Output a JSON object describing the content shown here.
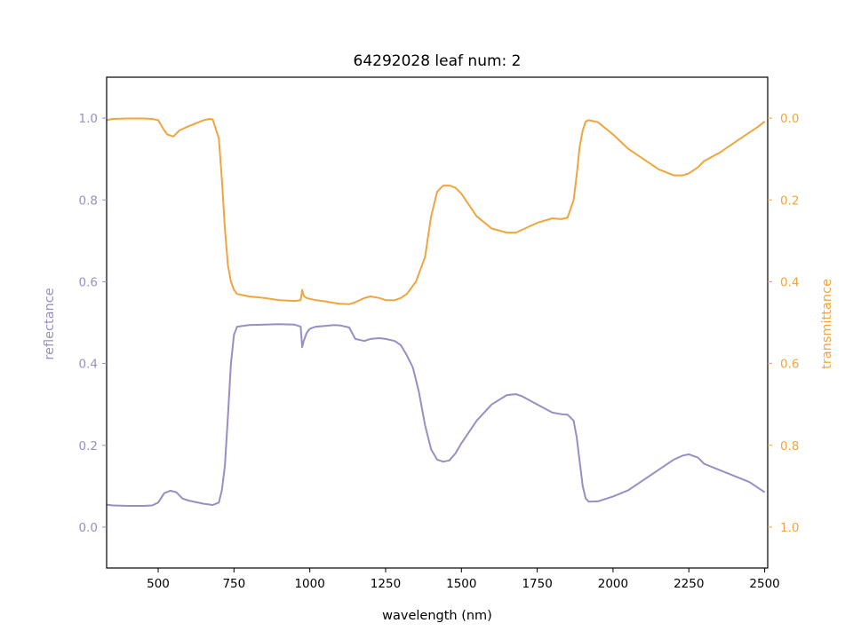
{
  "chart_data": {
    "type": "line",
    "title": "64292028 leaf num: 2",
    "xlabel": "wavelength (nm)",
    "ylabel": "reflectance",
    "y2label": "transmittance",
    "xlim": [
      330,
      2510
    ],
    "ylim": [
      -0.1,
      1.1
    ],
    "y2lim": [
      1.1,
      -0.1
    ],
    "y2_inverted": true,
    "x_ticks": [
      500,
      750,
      1000,
      1250,
      1500,
      1750,
      2000,
      2250,
      2500
    ],
    "y_ticks": [
      0.0,
      0.2,
      0.4,
      0.6,
      0.8,
      1.0
    ],
    "y2_ticks": [
      0.0,
      0.2,
      0.4,
      0.6,
      0.8,
      1.0
    ],
    "grid": false,
    "colors": {
      "reflectance": "#9490c4",
      "transmittance": "#f0a53e"
    },
    "series": [
      {
        "axis": "left",
        "x": [
          330,
          350,
          400,
          450,
          480,
          500,
          520,
          540,
          560,
          580,
          600,
          650,
          680,
          700,
          710,
          720,
          730,
          740,
          750,
          760,
          800,
          850,
          900,
          950,
          970,
          975,
          980,
          990,
          1000,
          1020,
          1050,
          1080,
          1100,
          1130,
          1150,
          1180,
          1200,
          1230,
          1250,
          1280,
          1300,
          1320,
          1340,
          1360,
          1380,
          1400,
          1420,
          1440,
          1460,
          1480,
          1500,
          1550,
          1600,
          1650,
          1680,
          1700,
          1750,
          1800,
          1830,
          1850,
          1870,
          1880,
          1890,
          1900,
          1910,
          1920,
          1950,
          2000,
          2050,
          2100,
          2150,
          2200,
          2230,
          2250,
          2280,
          2300,
          2350,
          2400,
          2450,
          2480,
          2500
        ],
        "y": [
          0.055,
          0.053,
          0.052,
          0.052,
          0.053,
          0.06,
          0.083,
          0.089,
          0.085,
          0.07,
          0.065,
          0.057,
          0.054,
          0.06,
          0.09,
          0.15,
          0.27,
          0.4,
          0.47,
          0.49,
          0.494,
          0.495,
          0.496,
          0.495,
          0.49,
          0.44,
          0.455,
          0.475,
          0.485,
          0.49,
          0.492,
          0.494,
          0.493,
          0.488,
          0.46,
          0.455,
          0.46,
          0.462,
          0.46,
          0.455,
          0.445,
          0.42,
          0.39,
          0.33,
          0.25,
          0.19,
          0.165,
          0.16,
          0.163,
          0.18,
          0.205,
          0.26,
          0.3,
          0.323,
          0.325,
          0.32,
          0.3,
          0.28,
          0.276,
          0.275,
          0.26,
          0.22,
          0.16,
          0.1,
          0.07,
          0.062,
          0.063,
          0.075,
          0.09,
          0.115,
          0.14,
          0.165,
          0.175,
          0.178,
          0.17,
          0.155,
          0.14,
          0.125,
          0.11,
          0.095,
          0.085
        ]
      },
      {
        "axis": "right",
        "x": [
          330,
          350,
          400,
          450,
          480,
          500,
          520,
          530,
          550,
          570,
          600,
          650,
          670,
          680,
          700,
          710,
          720,
          730,
          740,
          750,
          760,
          780,
          800,
          850,
          900,
          950,
          970,
          975,
          980,
          990,
          1000,
          1020,
          1050,
          1080,
          1100,
          1130,
          1150,
          1180,
          1200,
          1230,
          1250,
          1280,
          1300,
          1320,
          1350,
          1380,
          1400,
          1420,
          1440,
          1460,
          1480,
          1500,
          1550,
          1600,
          1650,
          1680,
          1700,
          1750,
          1800,
          1830,
          1850,
          1870,
          1880,
          1890,
          1900,
          1910,
          1920,
          1950,
          2000,
          2050,
          2100,
          2150,
          2200,
          2230,
          2250,
          2280,
          2300,
          2350,
          2400,
          2450,
          2480,
          2500
        ],
        "y": [
          0.005,
          0.002,
          0.001,
          0.001,
          0.002,
          0.005,
          0.03,
          0.04,
          0.045,
          0.03,
          0.02,
          0.005,
          0.002,
          0.003,
          0.05,
          0.15,
          0.27,
          0.36,
          0.4,
          0.42,
          0.43,
          0.433,
          0.436,
          0.44,
          0.445,
          0.447,
          0.445,
          0.42,
          0.435,
          0.44,
          0.442,
          0.445,
          0.448,
          0.452,
          0.454,
          0.455,
          0.45,
          0.44,
          0.436,
          0.44,
          0.445,
          0.445,
          0.44,
          0.43,
          0.4,
          0.34,
          0.24,
          0.18,
          0.165,
          0.165,
          0.17,
          0.185,
          0.24,
          0.27,
          0.28,
          0.28,
          0.273,
          0.256,
          0.245,
          0.247,
          0.243,
          0.2,
          0.14,
          0.07,
          0.03,
          0.008,
          0.005,
          0.01,
          0.04,
          0.075,
          0.1,
          0.125,
          0.14,
          0.14,
          0.135,
          0.12,
          0.105,
          0.085,
          0.06,
          0.035,
          0.02,
          0.008
        ]
      }
    ]
  }
}
